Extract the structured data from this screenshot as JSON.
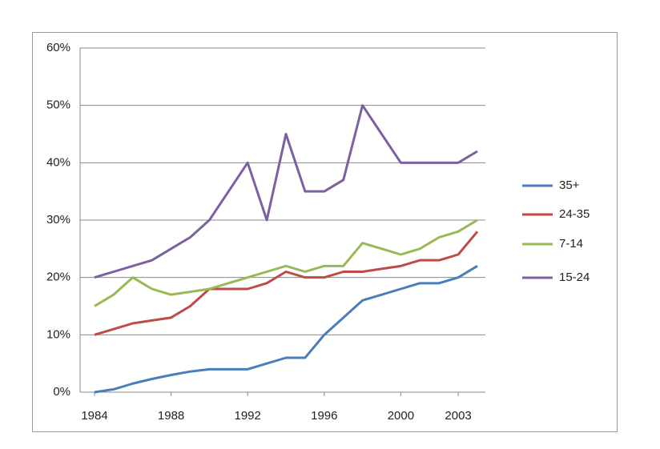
{
  "chart_data": {
    "type": "line",
    "x": [
      1984,
      1985,
      1986,
      1987,
      1988,
      1989,
      1990,
      1991,
      1992,
      1993,
      1994,
      1995,
      1996,
      1997,
      1998,
      1999,
      2000,
      2001,
      2002,
      2003,
      2004
    ],
    "xlim": [
      1984,
      2004
    ],
    "xticks": [
      1984,
      1988,
      1992,
      1996,
      2000,
      2003
    ],
    "ylim": [
      0,
      60
    ],
    "yticks": [
      {
        "value": 0,
        "label": "0%"
      },
      {
        "value": 10,
        "label": "10%"
      },
      {
        "value": 20,
        "label": "20%"
      },
      {
        "value": 30,
        "label": "30%"
      },
      {
        "value": 40,
        "label": "40%"
      },
      {
        "value": 50,
        "label": "50%"
      },
      {
        "value": 60,
        "label": "60%"
      }
    ],
    "grid": true,
    "legend": "right",
    "series": [
      {
        "name": "35+",
        "color": "#4a7ebb",
        "values": [
          0,
          0.5,
          1.5,
          2.3,
          3,
          3.6,
          4,
          4,
          4,
          5,
          6,
          6,
          10,
          13,
          16,
          17,
          18,
          19,
          19,
          20,
          22
        ]
      },
      {
        "name": "24-35",
        "color": "#be4b48",
        "values": [
          10,
          11,
          12,
          12.5,
          13,
          15,
          18,
          18,
          18,
          19,
          21,
          20,
          20,
          21,
          21,
          21.5,
          22,
          23,
          23,
          24,
          28
        ]
      },
      {
        "name": "7-14",
        "color": "#98b954",
        "values": [
          15,
          17,
          20,
          18,
          17,
          17.5,
          18,
          19,
          20,
          21,
          22,
          21,
          22,
          22,
          26,
          25,
          24,
          25,
          27,
          28,
          30
        ]
      },
      {
        "name": "15-24",
        "color": "#7d60a0",
        "values": [
          20,
          21,
          22,
          23,
          25,
          27,
          30,
          35,
          40,
          30,
          45,
          35,
          35,
          37,
          50,
          45,
          40,
          40,
          40,
          40,
          42
        ]
      }
    ]
  }
}
